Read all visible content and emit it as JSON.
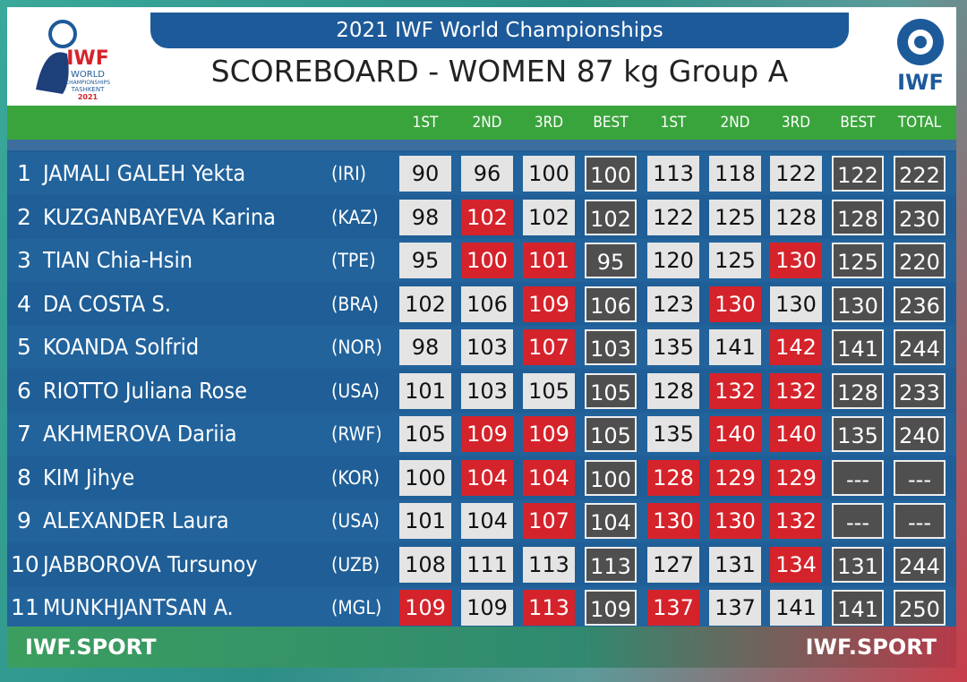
{
  "header": {
    "event": "2021 IWF World Championships",
    "title": "SCOREBOARD - WOMEN 87 kg Group A",
    "left_logo": [
      "IWF",
      "WORLD",
      "CHAMPIONSHIPS",
      "TASHKENT",
      "2021"
    ],
    "right_logo": "IWF"
  },
  "table": {
    "columns": [
      "1ST",
      "2ND",
      "3RD",
      "BEST",
      "1ST",
      "2ND",
      "3RD",
      "BEST",
      "TOTAL"
    ],
    "cell_kinds": [
      "attempt",
      "attempt",
      "attempt",
      "best",
      "attempt",
      "attempt",
      "attempt",
      "best",
      "best"
    ],
    "rows": [
      {
        "rank": 1,
        "name": "JAMALI GALEH Yekta",
        "nation": "(IRI)",
        "cells": [
          90,
          96,
          100,
          100,
          113,
          118,
          122,
          122,
          222
        ],
        "results": [
          "good",
          "good",
          "good",
          null,
          "good",
          "good",
          "good",
          null,
          null
        ]
      },
      {
        "rank": 2,
        "name": "KUZGANBAYEVA Karina",
        "nation": "(KAZ)",
        "cells": [
          98,
          102,
          102,
          102,
          122,
          125,
          128,
          128,
          230
        ],
        "results": [
          "good",
          "no",
          "good",
          null,
          "good",
          "good",
          "good",
          null,
          null
        ]
      },
      {
        "rank": 3,
        "name": "TIAN Chia-Hsin",
        "nation": "(TPE)",
        "cells": [
          95,
          100,
          101,
          95,
          120,
          125,
          130,
          125,
          220
        ],
        "results": [
          "good",
          "no",
          "no",
          null,
          "good",
          "good",
          "no",
          null,
          null
        ]
      },
      {
        "rank": 4,
        "name": "DA COSTA S.",
        "nation": "(BRA)",
        "cells": [
          102,
          106,
          109,
          106,
          123,
          130,
          130,
          130,
          236
        ],
        "results": [
          "good",
          "good",
          "no",
          null,
          "good",
          "no",
          "good",
          null,
          null
        ]
      },
      {
        "rank": 5,
        "name": "KOANDA Solfrid",
        "nation": "(NOR)",
        "cells": [
          98,
          103,
          107,
          103,
          135,
          141,
          142,
          141,
          244
        ],
        "results": [
          "good",
          "good",
          "no",
          null,
          "good",
          "good",
          "no",
          null,
          null
        ]
      },
      {
        "rank": 6,
        "name": "RIOTTO Juliana Rose",
        "nation": "(USA)",
        "cells": [
          101,
          103,
          105,
          105,
          128,
          132,
          132,
          128,
          233
        ],
        "results": [
          "good",
          "good",
          "good",
          null,
          "good",
          "no",
          "no",
          null,
          null
        ]
      },
      {
        "rank": 7,
        "name": "AKHMEROVA Dariia",
        "nation": "(RWF)",
        "cells": [
          105,
          109,
          109,
          105,
          135,
          140,
          140,
          135,
          240
        ],
        "results": [
          "good",
          "no",
          "no",
          null,
          "good",
          "no",
          "no",
          null,
          null
        ]
      },
      {
        "rank": 8,
        "name": "KIM Jihye",
        "nation": "(KOR)",
        "cells": [
          100,
          104,
          104,
          100,
          128,
          129,
          129,
          "---",
          "---"
        ],
        "results": [
          "good",
          "no",
          "no",
          null,
          "no",
          "no",
          "no",
          null,
          null
        ]
      },
      {
        "rank": 9,
        "name": "ALEXANDER Laura",
        "nation": "(USA)",
        "cells": [
          101,
          104,
          107,
          104,
          130,
          130,
          132,
          "---",
          "---"
        ],
        "results": [
          "good",
          "good",
          "no",
          null,
          "no",
          "no",
          "no",
          null,
          null
        ]
      },
      {
        "rank": 10,
        "name": "JABBOROVA Tursunoy",
        "nation": "(UZB)",
        "cells": [
          108,
          111,
          113,
          113,
          127,
          131,
          134,
          131,
          244
        ],
        "results": [
          "good",
          "good",
          "good",
          null,
          "good",
          "good",
          "no",
          null,
          null
        ]
      },
      {
        "rank": 11,
        "name": "MUNKHJANTSAN A.",
        "nation": "(MGL)",
        "cells": [
          109,
          109,
          113,
          109,
          137,
          137,
          141,
          141,
          250
        ],
        "results": [
          "no",
          "good",
          "no",
          null,
          "no",
          "good",
          "good",
          null,
          null
        ]
      }
    ]
  },
  "footer": {
    "left": "IWF.SPORT",
    "right": "IWF.SPORT"
  }
}
